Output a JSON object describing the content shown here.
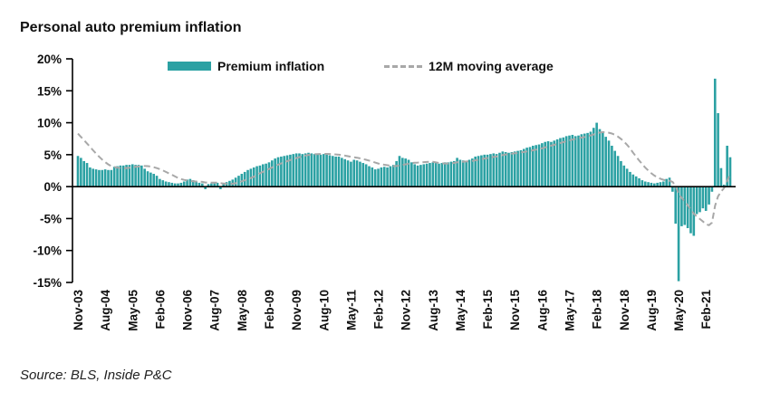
{
  "title": "Personal auto premium inflation",
  "source": "Source: BLS, Inside P&C",
  "colors": {
    "bar": "#2BA1A3",
    "moving_average": "#A8A8A8",
    "axis": "#000000",
    "text": "#111111"
  },
  "legend": [
    {
      "label": "Premium inflation",
      "swatch": "bar"
    },
    {
      "label": "12M moving average",
      "swatch": "dashed-line"
    }
  ],
  "chart_data": {
    "type": "bar",
    "unit": "%",
    "x_start_month": "Nov-03",
    "x_end_month": "Oct-21",
    "x_tick_every_months": 9,
    "x_tick_labels": [
      "Nov-03",
      "Aug-04",
      "May-05",
      "Feb-06",
      "Nov-06",
      "Aug-07",
      "May-08",
      "Feb-09",
      "Nov-09",
      "Aug-10",
      "May-11",
      "Feb-12",
      "Nov-12",
      "Aug-13",
      "May-14",
      "Feb-15",
      "Nov-15",
      "Aug-16",
      "May-17",
      "Feb-18",
      "Nov-18",
      "Aug-19",
      "May-20",
      "Feb-21"
    ],
    "y_tick_labels": [
      "20%",
      "15%",
      "10%",
      "5%",
      "0%",
      "-5%",
      "-10%",
      "-15%"
    ],
    "y_ticks": [
      20,
      15,
      10,
      5,
      0,
      -5,
      -10,
      -15
    ],
    "ylim": [
      -15,
      20
    ],
    "grid": "off",
    "legend_position": "top-center",
    "series": [
      {
        "name": "Premium inflation",
        "type": "bar",
        "values": [
          4.8,
          4.5,
          4.0,
          3.7,
          3.0,
          2.8,
          2.7,
          2.6,
          2.6,
          2.7,
          2.6,
          2.6,
          3.1,
          3.2,
          3.3,
          3.3,
          3.4,
          3.4,
          3.5,
          3.4,
          3.4,
          3.3,
          2.8,
          2.4,
          2.2,
          2.0,
          1.7,
          1.2,
          1.0,
          0.8,
          0.7,
          0.6,
          0.5,
          0.5,
          0.6,
          0.8,
          1.1,
          1.2,
          1.0,
          0.8,
          0.6,
          0.5,
          -0.4,
          0.4,
          0.5,
          0.5,
          0.6,
          -0.4,
          0.5,
          0.7,
          0.9,
          1.1,
          1.4,
          1.7,
          2.0,
          2.3,
          2.6,
          2.8,
          3.0,
          3.2,
          3.3,
          3.5,
          3.6,
          3.8,
          4.1,
          4.4,
          4.6,
          4.7,
          4.8,
          4.9,
          5.0,
          5.1,
          5.2,
          5.2,
          5.1,
          5.2,
          5.3,
          5.2,
          5.1,
          5.0,
          5.0,
          5.1,
          5.0,
          4.9,
          4.8,
          4.7,
          4.7,
          4.5,
          4.3,
          4.1,
          3.9,
          4.2,
          4.1,
          3.9,
          3.7,
          3.5,
          3.2,
          3.0,
          2.7,
          2.8,
          3.0,
          3.1,
          3.0,
          3.2,
          3.4,
          4.0,
          4.8,
          4.5,
          4.4,
          4.2,
          3.8,
          3.5,
          3.3,
          3.4,
          3.5,
          3.6,
          3.7,
          3.8,
          3.7,
          3.6,
          3.7,
          3.8,
          3.8,
          3.9,
          4.0,
          4.5,
          4.2,
          4.1,
          4.0,
          4.2,
          4.4,
          4.7,
          4.8,
          4.9,
          5.0,
          5.0,
          5.1,
          5.2,
          5.1,
          5.3,
          5.5,
          5.4,
          5.3,
          5.4,
          5.5,
          5.6,
          5.7,
          5.9,
          6.1,
          6.2,
          6.4,
          6.5,
          6.6,
          6.8,
          7.0,
          7.1,
          7.0,
          7.2,
          7.4,
          7.6,
          7.7,
          7.9,
          8.0,
          8.1,
          7.9,
          8.0,
          8.2,
          8.3,
          8.4,
          8.6,
          9.2,
          10.0,
          9.0,
          8.6,
          7.8,
          7.2,
          6.4,
          5.6,
          4.8,
          4.0,
          3.3,
          2.8,
          2.3,
          1.9,
          1.6,
          1.3,
          1.0,
          0.8,
          0.7,
          0.6,
          0.5,
          0.6,
          0.7,
          0.8,
          1.2,
          1.4,
          -0.8,
          -5.8,
          -14.8,
          -6.2,
          -6.0,
          -6.5,
          -7.3,
          -7.7,
          -4.3,
          -4.0,
          -3.4,
          -3.8,
          -2.8,
          -0.8,
          16.9,
          11.5,
          2.9,
          0.3,
          6.4,
          4.6
        ]
      },
      {
        "name": "12M moving average",
        "type": "line",
        "style": "dashed",
        "derived": "trailing 12-month average of Premium inflation",
        "seed_values_prior_11_months": [
          10.5,
          10.2,
          9.8,
          9.5,
          9.2,
          8.9,
          8.5,
          8.0,
          7.5,
          6.8,
          5.8
        ]
      }
    ]
  }
}
